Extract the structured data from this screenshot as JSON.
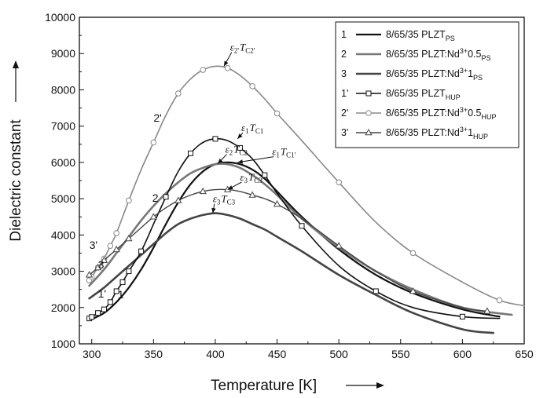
{
  "chart_data": {
    "type": "line",
    "title": "",
    "xlabel": "Temperature [K]",
    "ylabel": "Dielectric constant",
    "xlim": [
      290,
      650
    ],
    "ylim": [
      1000,
      10000
    ],
    "xticks": [
      300,
      350,
      400,
      450,
      500,
      550,
      600,
      650
    ],
    "yticks": [
      1000,
      2000,
      3000,
      4000,
      5000,
      6000,
      7000,
      8000,
      9000,
      10000
    ],
    "grid": false,
    "legend_position": "top-right",
    "series": [
      {
        "name": "8/65/35 PLZT",
        "name_sub": "PS",
        "legend_key": "1",
        "curve_label": "1",
        "color": "#111111",
        "width": 2.2,
        "marker": "none",
        "x": [
          298,
          310,
          320,
          330,
          340,
          350,
          360,
          370,
          380,
          390,
          400,
          410,
          420,
          430,
          440,
          450,
          470,
          500,
          530,
          560,
          600,
          630
        ],
        "y": [
          1650,
          1850,
          2150,
          2550,
          3050,
          3650,
          4300,
          4900,
          5400,
          5750,
          5950,
          6000,
          5950,
          5800,
          5550,
          5200,
          4500,
          3600,
          2900,
          2400,
          1950,
          1750
        ]
      },
      {
        "name": "8/65/35 PLZT:Nd",
        "name_sup": "3+",
        "name_tail": "0.5",
        "name_sub": "PS",
        "legend_key": "2",
        "curve_label": "2",
        "color": "#777777",
        "width": 2.6,
        "marker": "none",
        "x": [
          298,
          310,
          320,
          330,
          340,
          350,
          360,
          370,
          380,
          390,
          400,
          410,
          420,
          430,
          440,
          450,
          470,
          500,
          530,
          560,
          600,
          640
        ],
        "y": [
          2600,
          3050,
          3500,
          3950,
          4400,
          4800,
          5150,
          5450,
          5700,
          5850,
          5950,
          5950,
          5850,
          5650,
          5400,
          5100,
          4450,
          3650,
          3000,
          2500,
          2000,
          1800
        ]
      },
      {
        "name": "8/65/35 PLZT:Nd",
        "name_sup": "3+",
        "name_tail": "1",
        "name_sub": "PS",
        "legend_key": "3",
        "curve_label": "3",
        "color": "#444444",
        "width": 2.6,
        "marker": "none",
        "x": [
          298,
          310,
          320,
          330,
          340,
          350,
          360,
          370,
          380,
          390,
          400,
          410,
          420,
          430,
          440,
          450,
          470,
          500,
          530,
          560,
          600,
          625
        ],
        "y": [
          2250,
          2550,
          2850,
          3150,
          3450,
          3750,
          4050,
          4300,
          4450,
          4550,
          4600,
          4550,
          4450,
          4300,
          4150,
          3950,
          3550,
          2900,
          2350,
          1850,
          1400,
          1300
        ]
      },
      {
        "name": "8/65/35 PLZT",
        "name_sub": "HUP",
        "legend_key": "1'",
        "curve_label": "1'",
        "color": "#111111",
        "width": 1.6,
        "marker": "square",
        "x": [
          298,
          300,
          305,
          310,
          315,
          320,
          325,
          330,
          340,
          350,
          360,
          370,
          380,
          390,
          400,
          410,
          420,
          430,
          440,
          450,
          470,
          500,
          530,
          560,
          600,
          630
        ],
        "y": [
          1700,
          1740,
          1850,
          1950,
          2150,
          2450,
          2700,
          3000,
          3550,
          4300,
          5050,
          5750,
          6250,
          6550,
          6650,
          6600,
          6400,
          6100,
          5650,
          5150,
          4250,
          3150,
          2450,
          2000,
          1750,
          1700
        ]
      },
      {
        "name": "8/65/35 PLZT:Nd",
        "name_sup": "3+",
        "name_tail": "0.5",
        "name_sub": "HUP",
        "legend_key": "2'",
        "curve_label": "2'",
        "color": "#888888",
        "width": 1.6,
        "marker": "circle",
        "x": [
          298,
          300,
          305,
          310,
          315,
          320,
          330,
          340,
          350,
          360,
          370,
          380,
          390,
          400,
          410,
          420,
          430,
          440,
          450,
          470,
          500,
          530,
          560,
          600,
          630,
          650
        ],
        "y": [
          2750,
          2850,
          3100,
          3350,
          3700,
          4050,
          4950,
          5800,
          6550,
          7300,
          7900,
          8300,
          8550,
          8650,
          8600,
          8400,
          8100,
          7750,
          7350,
          6600,
          5450,
          4350,
          3500,
          2700,
          2200,
          2050
        ]
      },
      {
        "name": "8/65/35 PLZT:Nd",
        "name_sup": "3+",
        "name_tail": "1",
        "name_sub": "HUP",
        "legend_key": "3'",
        "curve_label": "3'",
        "color": "#444444",
        "width": 1.4,
        "marker": "triangle",
        "x": [
          298,
          305,
          310,
          320,
          330,
          340,
          350,
          360,
          370,
          380,
          390,
          400,
          410,
          420,
          430,
          440,
          450,
          470,
          500,
          530,
          560,
          600,
          620
        ],
        "y": [
          2900,
          3100,
          3300,
          3600,
          3900,
          4200,
          4500,
          4750,
          4950,
          5100,
          5200,
          5250,
          5250,
          5200,
          5100,
          5000,
          4850,
          4450,
          3700,
          3000,
          2450,
          2000,
          1900
        ]
      }
    ],
    "curve_labels_pos": [
      {
        "key": "1",
        "x": 321,
        "y": 2250
      },
      {
        "key": "2",
        "x": 349,
        "y": 4920
      },
      {
        "key": "3",
        "x": 305,
        "y": 3080
      },
      {
        "key": "1'",
        "x": 305,
        "y": 2280
      },
      {
        "key": "2'",
        "x": 350,
        "y": 7120
      },
      {
        "key": "3'",
        "x": 298,
        "y": 3620
      }
    ],
    "annotations": [
      {
        "eps": "ε",
        "eps_sub": "1",
        "T": "T",
        "T_sub": "C1",
        "x": 421,
        "y": 6860,
        "ax": 418,
        "ay": 6650
      },
      {
        "eps": "ε",
        "eps_sub": "2",
        "T": "T",
        "T_sub": "C2",
        "x": 408,
        "y": 6270,
        "ax": 402,
        "ay": 5960
      },
      {
        "eps": "ε",
        "eps_sub": "1",
        "T": "T",
        "T_sub": "C1'",
        "x": 446,
        "y": 6200,
        "ax": 418,
        "ay": 6000
      },
      {
        "eps": "ε",
        "eps_sub": "3",
        "T": "T",
        "T_sub": "C3'",
        "x": 420,
        "y": 5500,
        "ax": 410,
        "ay": 5250
      },
      {
        "eps": "ε",
        "eps_sub": "3",
        "T": "T",
        "T_sub": "C3",
        "x": 398,
        "y": 4900,
        "ax": 398,
        "ay": 4600
      },
      {
        "eps": "ε",
        "eps_sub": "2'",
        "T": "T",
        "T_sub": "C2'",
        "x": 412,
        "y": 9080,
        "ax": 407,
        "ay": 8650
      }
    ]
  }
}
